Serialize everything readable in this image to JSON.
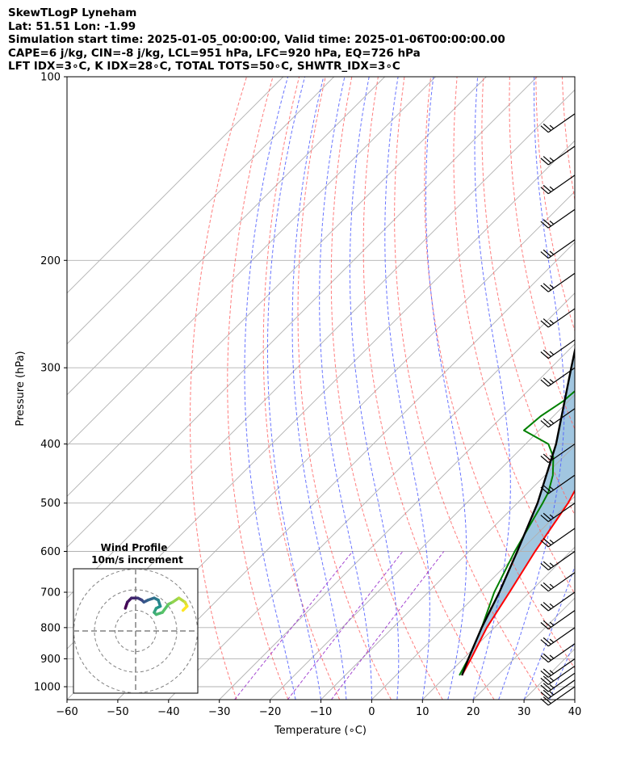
{
  "header": {
    "line1": "SkewTLogP Lyneham",
    "line2": "Lat: 51.51   Lon: -1.99",
    "line3": "Simulation start time: 2025-01-05_00:00:00, Valid time: 2025-01-06T00:00:00.00",
    "line4": "CAPE=6 j/kg, CIN=-8 j/kg, LCL=951 hPa, LFC=920 hPa, EQ=726 hPa",
    "line5": "LFT IDX=3∘C, K IDX=28∘C, TOTAL TOTS=50∘C, SHWTR_IDX=3∘C"
  },
  "axes": {
    "xlabel": "Temperature (∘C)",
    "ylabel": "Pressure (hPa)"
  },
  "inset": {
    "title_line1": "Wind Profile",
    "title_line2": "10m/s increment"
  },
  "colors": {
    "temperature": "#ff0000",
    "dewpoint": "#008000",
    "parcel": "#000000",
    "cape_fill": "#a1c6e0",
    "dry_adiabat": "#ff6666",
    "moist_adiabat": "#4d5cff",
    "mixing_ratio": "#9933cc",
    "isotherm": "#b0b0b0",
    "isobar": "#b0b0b0"
  },
  "chart_data": {
    "type": "line",
    "kind": "skew-T log-P",
    "xlim": [
      -60,
      40
    ],
    "ylim": [
      1050,
      100
    ],
    "y_scale": "log",
    "x_ticks": [
      -60,
      -50,
      -40,
      -30,
      -20,
      -10,
      0,
      10,
      20,
      30,
      40
    ],
    "y_ticks": [
      1000,
      900,
      800,
      700,
      600,
      500,
      400,
      300,
      200,
      100
    ],
    "series": [
      {
        "role": "temperature",
        "points": [
          [
            958,
            13.0
          ],
          [
            900,
            11.5
          ],
          [
            800,
            8.5
          ],
          [
            700,
            6.0
          ],
          [
            600,
            3.0
          ],
          [
            500,
            0.0
          ],
          [
            450,
            -2.5
          ],
          [
            400,
            -6.0
          ],
          [
            350,
            -10.0
          ],
          [
            300,
            -15.0
          ],
          [
            280,
            -16.0
          ],
          [
            260,
            -16.5
          ],
          [
            240,
            -15.0
          ],
          [
            220,
            -13.5
          ],
          [
            200,
            -12.0
          ],
          [
            180,
            -10.0
          ],
          [
            160,
            -9.0
          ],
          [
            140,
            -8.0
          ],
          [
            125,
            -7.5
          ],
          [
            110,
            -8.0
          ],
          [
            100,
            -9.5
          ]
        ]
      },
      {
        "role": "dewpoint",
        "points": [
          [
            958,
            12.5
          ],
          [
            900,
            11.0
          ],
          [
            800,
            7.5
          ],
          [
            700,
            3.0
          ],
          [
            600,
            -1.0
          ],
          [
            500,
            -5.0
          ],
          [
            480,
            -6.0
          ],
          [
            450,
            -8.5
          ],
          [
            420,
            -12.0
          ],
          [
            400,
            -15.5
          ],
          [
            380,
            -23.0
          ],
          [
            360,
            -22.5
          ],
          [
            340,
            -21.0
          ],
          [
            320,
            -20.5
          ],
          [
            300,
            -21.5
          ],
          [
            280,
            -23.0
          ],
          [
            260,
            -25.5
          ],
          [
            240,
            -27.5
          ],
          [
            220,
            -30.0
          ],
          [
            200,
            -32.5
          ],
          [
            190,
            -34.0
          ],
          [
            180,
            -36.0
          ],
          [
            165,
            -36.0
          ],
          [
            150,
            -36.0
          ],
          [
            130,
            -35.0
          ],
          [
            115,
            -33.0
          ],
          [
            100,
            -31.5
          ]
        ]
      },
      {
        "role": "parcel",
        "points": [
          [
            958,
            13.0
          ],
          [
            900,
            11.0
          ],
          [
            800,
            7.5
          ],
          [
            700,
            4.0
          ],
          [
            600,
            -0.5
          ],
          [
            500,
            -6.0
          ],
          [
            400,
            -14.0
          ],
          [
            300,
            -26.0
          ],
          [
            250,
            -33.5
          ],
          [
            200,
            -43.5
          ],
          [
            150,
            -57.0
          ],
          [
            130,
            -63.5
          ],
          [
            110,
            -71.0
          ],
          [
            100,
            -75.5
          ]
        ]
      }
    ],
    "wind_barbs": [
      {
        "p": 1000,
        "speed_kt": 20
      },
      {
        "p": 975,
        "speed_kt": 25
      },
      {
        "p": 950,
        "speed_kt": 25
      },
      {
        "p": 925,
        "speed_kt": 25
      },
      {
        "p": 900,
        "speed_kt": 25
      },
      {
        "p": 850,
        "speed_kt": 25
      },
      {
        "p": 800,
        "speed_kt": 25
      },
      {
        "p": 750,
        "speed_kt": 25
      },
      {
        "p": 700,
        "speed_kt": 25
      },
      {
        "p": 650,
        "speed_kt": 25
      },
      {
        "p": 600,
        "speed_kt": 25
      },
      {
        "p": 550,
        "speed_kt": 25
      },
      {
        "p": 500,
        "speed_kt": 25
      },
      {
        "p": 450,
        "speed_kt": 25
      },
      {
        "p": 400,
        "speed_kt": 25
      },
      {
        "p": 350,
        "speed_kt": 25
      },
      {
        "p": 300,
        "speed_kt": 25
      },
      {
        "p": 270,
        "speed_kt": 25
      },
      {
        "p": 240,
        "speed_kt": 25
      },
      {
        "p": 210,
        "speed_kt": 25
      },
      {
        "p": 185,
        "speed_kt": 25
      },
      {
        "p": 165,
        "speed_kt": 25
      },
      {
        "p": 145,
        "speed_kt": 25
      },
      {
        "p": 130,
        "speed_kt": 25
      },
      {
        "p": 115,
        "speed_kt": 25
      }
    ],
    "hodograph": {
      "rings_ms": [
        10,
        20,
        30
      ],
      "points_uv": [
        [
          -5,
          11
        ],
        [
          -4,
          14
        ],
        [
          -2,
          16
        ],
        [
          1,
          16
        ],
        [
          3,
          15
        ],
        [
          4,
          14
        ],
        [
          6,
          15
        ],
        [
          9,
          16
        ],
        [
          11,
          15
        ],
        [
          12,
          12
        ],
        [
          10,
          11
        ],
        [
          9,
          9
        ],
        [
          10,
          8
        ],
        [
          13,
          9
        ],
        [
          16,
          13
        ],
        [
          18,
          14
        ],
        [
          21,
          16
        ],
        [
          24,
          14
        ],
        [
          25,
          12
        ],
        [
          23,
          10
        ]
      ]
    }
  }
}
